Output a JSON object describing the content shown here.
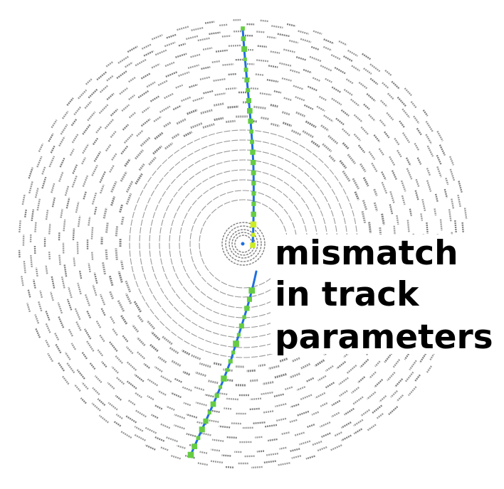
{
  "annotation": {
    "lines": [
      "mismatch",
      "in track",
      "parameters"
    ]
  },
  "colors": {
    "background": "#ffffff",
    "detector_module": "#9a9a9a",
    "detector_module_dark": "#7f7f7f",
    "track": "#1f6fe0",
    "hit": "#66cc44",
    "hit_highlight": "#ccee22",
    "vertex": "#1f6fe0",
    "label": "#000000"
  },
  "detector": {
    "inner_ring_count": 13,
    "outer_ring_count": 8
  }
}
